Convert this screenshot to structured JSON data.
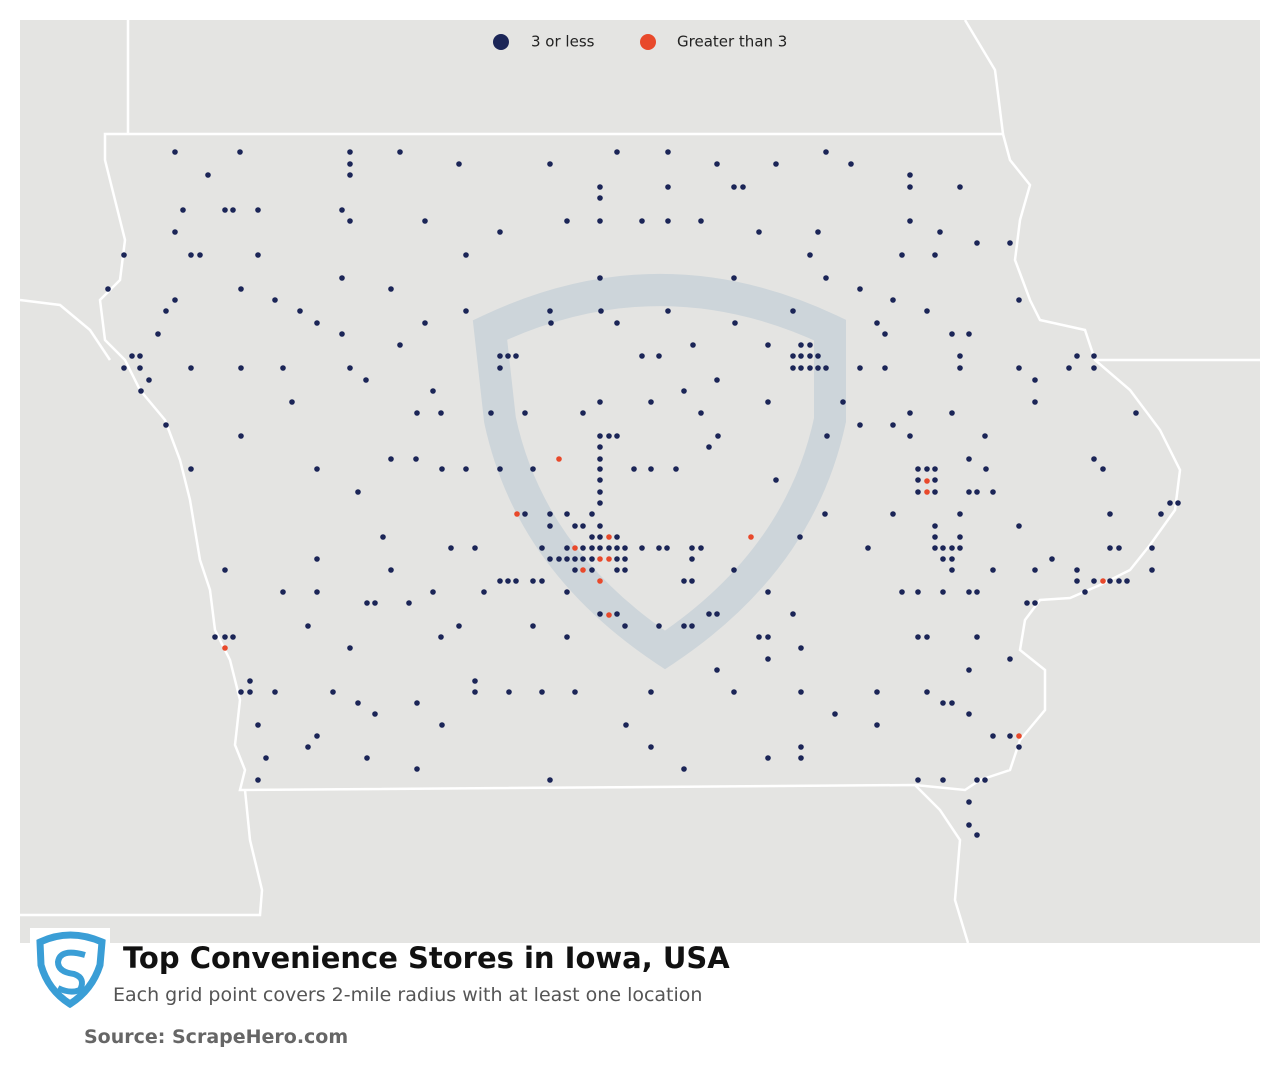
{
  "title": "Top Convenience Stores in Iowa, USA",
  "subtitle": "Each grid point covers 2-mile radius with at least one location",
  "source": "Source: ScrapeHero.com",
  "legend": [
    {
      "name": "3 or less",
      "color": "#1b2557"
    },
    {
      "name": "Greater than 3",
      "color": "#e8492b"
    }
  ]
}
